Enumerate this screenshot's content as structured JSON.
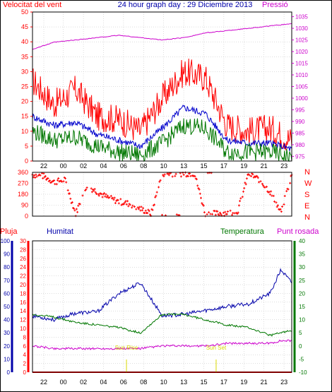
{
  "title": "24 hour graph day : 29 Diciembre 2013",
  "colors": {
    "wind_gust": "#ff0000",
    "wind_avg": "#0000cc",
    "wind_min": "#007700",
    "pressure": "#cc00cc",
    "direction": "#ff0000",
    "rain": "#ff0000",
    "humidity": "#0000aa",
    "temperature": "#007700",
    "dewpoint": "#cc00cc",
    "sun": "#d8d800",
    "axis_left_top": "#ff0000",
    "axis_right_top": "#cc00cc",
    "axis_rain": "#ff0000",
    "axis_hum": "#0000aa",
    "axis_temp": "#007700",
    "grid": "#bbbbbb",
    "frame": "#000000"
  },
  "x_ticks": [
    "22",
    "00",
    "02",
    "04",
    "06",
    "08",
    "10",
    "13",
    "15",
    "17",
    "19",
    "21",
    "23"
  ],
  "chart_data": [
    {
      "type": "line",
      "title": "",
      "left_axis_label": "Velocitat del vent",
      "right_axis_label": "Pressió",
      "left_ticks": [
        "0",
        "5",
        "10",
        "15",
        "20",
        "25",
        "30",
        "35",
        "40",
        "45",
        "50"
      ],
      "right_ticks": [
        "975",
        "980",
        "985",
        "990",
        "995",
        "1000",
        "1005",
        "1010",
        "1015",
        "1020",
        "1025",
        "1030",
        "1035"
      ],
      "ylim_left": [
        0,
        50
      ],
      "ylim_right": [
        973,
        1037
      ],
      "x_index": [
        0,
        2,
        4,
        6,
        8,
        10,
        12,
        14,
        16,
        18,
        20,
        22,
        24
      ],
      "series": [
        {
          "name": "gust",
          "axis": "left",
          "values": [
            27,
            19,
            24,
            15,
            14,
            10,
            21,
            30,
            28,
            12,
            10,
            11,
            7
          ]
        },
        {
          "name": "average",
          "axis": "left",
          "values": [
            15,
            12,
            13,
            9,
            7,
            5,
            11,
            18,
            16,
            7,
            6,
            6,
            4
          ]
        },
        {
          "name": "minimum",
          "axis": "left",
          "values": [
            10,
            7,
            8,
            5,
            3,
            2,
            6,
            12,
            11,
            3,
            3,
            3,
            1
          ]
        },
        {
          "name": "pressure",
          "axis": "right",
          "values": [
            1021,
            1024,
            1025,
            1026,
            1027,
            1026,
            1025,
            1026,
            1028,
            1029,
            1030,
            1031,
            1032
          ]
        }
      ]
    },
    {
      "type": "scatter",
      "right_axis_label": "N W S E N",
      "left_ticks": [
        "0",
        "90",
        "180",
        "270",
        "360"
      ],
      "ylim": [
        0,
        360
      ],
      "x_index": [
        0,
        1,
        2,
        3,
        4,
        5,
        6,
        7,
        8,
        9,
        10,
        11,
        12,
        13,
        14,
        15,
        16,
        17,
        18,
        19,
        20,
        21,
        22,
        23,
        24
      ],
      "values": [
        340,
        330,
        280,
        300,
        20,
        250,
        200,
        150,
        120,
        100,
        60,
        20,
        350,
        350,
        350,
        350,
        20,
        20,
        30,
        40,
        350,
        300,
        200,
        30,
        340
      ]
    },
    {
      "type": "line",
      "labels": {
        "rain": "Pluja",
        "humidity": "Humitat",
        "temperature": "Temperatura",
        "dewpoint": "Punt rosada"
      },
      "hum_ticks": [
        "0",
        "10",
        "20",
        "30",
        "40",
        "50",
        "60",
        "70",
        "80",
        "90",
        "100"
      ],
      "rain_ticks": [
        "0",
        "2",
        "4",
        "6",
        "8",
        "10",
        "12",
        "14",
        "16",
        "18",
        "20",
        "22",
        "24",
        "26",
        "28",
        "30"
      ],
      "temp_ticks": [
        "-10",
        "-5",
        "0",
        "5",
        "10",
        "15",
        "20",
        "25",
        "30",
        "35",
        "40"
      ],
      "ylim_humidity": [
        0,
        100
      ],
      "ylim_rain": [
        0,
        30
      ],
      "ylim_temp": [
        -10,
        40
      ],
      "x_index": [
        0,
        2,
        4,
        6,
        8,
        10,
        12,
        14,
        16,
        18,
        20,
        22,
        23,
        24
      ],
      "series": [
        {
          "name": "Humitat",
          "axis": "humidity",
          "values": [
            43,
            40,
            45,
            46,
            60,
            68,
            43,
            44,
            47,
            50,
            52,
            60,
            78,
            68
          ]
        },
        {
          "name": "Temperatura",
          "axis": "temp",
          "values": [
            12,
            11,
            9,
            8,
            7,
            5,
            12,
            12,
            10,
            8,
            7,
            4,
            5,
            6
          ]
        },
        {
          "name": "Punt rosada",
          "axis": "temp",
          "values": [
            0,
            -1,
            -1,
            -1,
            -1,
            -1,
            0,
            0,
            0,
            1,
            1,
            1,
            2,
            2
          ]
        },
        {
          "name": "Pluja",
          "axis": "rain",
          "values": [
            0,
            0,
            0,
            0,
            0,
            0,
            0,
            0,
            0,
            0,
            0,
            0,
            0,
            0
          ]
        }
      ],
      "annotations": [
        {
          "text": "Sun Rise",
          "x_index": 8.7
        },
        {
          "text": "Sun Set",
          "x_index": 17.0
        }
      ]
    }
  ]
}
